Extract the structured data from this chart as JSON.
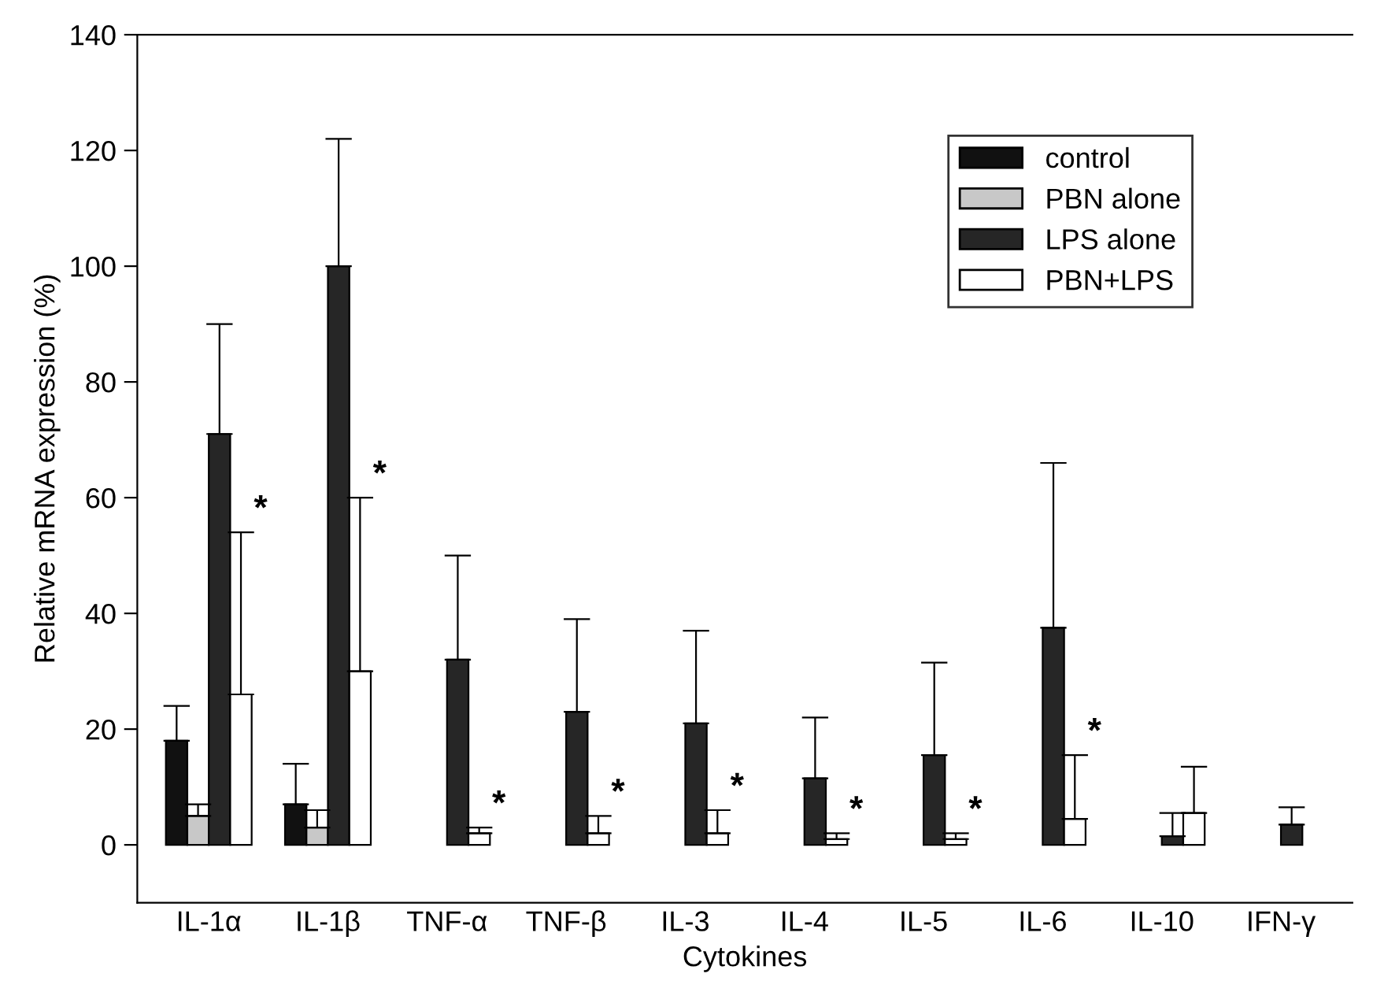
{
  "chart_data": {
    "type": "bar",
    "xlabel": "Cytokines",
    "ylabel": "Relative mRNA expression (%)",
    "categories": [
      "IL-1α",
      "IL-1β",
      "TNF-α",
      "TNF-β",
      "IL-3",
      "IL-4",
      "IL-5",
      "IL-6",
      "IL-10",
      "IFN-γ"
    ],
    "series": [
      {
        "name": "control",
        "color": "#111111",
        "values": [
          18,
          7,
          0,
          0,
          0,
          0,
          0,
          0,
          0,
          0
        ],
        "errors": [
          [
            18,
            24
          ],
          [
            7,
            14
          ],
          null,
          null,
          null,
          null,
          null,
          null,
          null,
          null
        ]
      },
      {
        "name": "PBN alone",
        "color": "#c8c8c8",
        "values": [
          5,
          3,
          0,
          0,
          0,
          0,
          0,
          0,
          0,
          0
        ],
        "errors": [
          [
            5,
            7
          ],
          [
            3,
            6
          ],
          null,
          null,
          null,
          null,
          null,
          null,
          null,
          null
        ]
      },
      {
        "name": "LPS alone",
        "color": "#262626",
        "values": [
          71,
          100,
          32,
          23,
          21,
          11.5,
          15.5,
          37.5,
          1.5,
          3.5
        ],
        "errors": [
          [
            71,
            90
          ],
          [
            100,
            122
          ],
          [
            32,
            50
          ],
          [
            23,
            39
          ],
          [
            21,
            37
          ],
          [
            11.5,
            22
          ],
          [
            15.5,
            31.5
          ],
          [
            37.5,
            66
          ],
          [
            1.5,
            5.5
          ],
          [
            3.5,
            6.5
          ]
        ]
      },
      {
        "name": "PBN+LPS",
        "color": "#ffffff",
        "values": [
          26,
          30,
          2,
          2,
          2,
          1,
          1,
          4.5,
          5.5,
          0
        ],
        "errors": [
          [
            26,
            54
          ],
          [
            30,
            60
          ],
          [
            2,
            3
          ],
          [
            2,
            5
          ],
          [
            2,
            6
          ],
          [
            1,
            2
          ],
          [
            1,
            2
          ],
          [
            4.5,
            15.5
          ],
          [
            5.5,
            13.5
          ],
          null
        ]
      }
    ],
    "annotations": [
      {
        "text": "*",
        "x": "IL-1α"
      },
      {
        "text": "*",
        "x": "IL-1β"
      },
      {
        "text": "*",
        "x": "TNF-α"
      },
      {
        "text": "*",
        "x": "TNF-β"
      },
      {
        "text": "*",
        "x": "IL-3"
      },
      {
        "text": "*",
        "x": "IL-4"
      },
      {
        "text": "*",
        "x": "IL-5"
      },
      {
        "text": "*",
        "x": "IL-6"
      }
    ],
    "ylim": [
      -10,
      140
    ],
    "yticks": [
      0,
      20,
      40,
      60,
      80,
      100,
      120,
      140
    ],
    "grid": false,
    "legend": "top right"
  }
}
